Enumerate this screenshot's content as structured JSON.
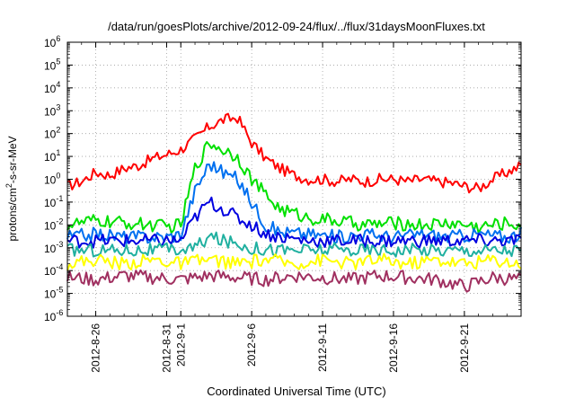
{
  "chart_data": {
    "type": "line",
    "title": "/data/run/goesPlots/archive/2012-09-24/flux/../flux/31daysMoonFluxes.txt",
    "xlabel": "Coordinated Universal Time (UTC)",
    "ylabel": {
      "prefix": "protons/cm",
      "sup": "2",
      "suffix": "-s-sr-MeV"
    },
    "y_scale": "log",
    "ylim": [
      1e-06,
      1000000.0
    ],
    "y_ticks": [
      {
        "value": -6,
        "base": "10",
        "exp": "-6"
      },
      {
        "value": -5,
        "base": "10",
        "exp": "-5"
      },
      {
        "value": -4,
        "base": "10",
        "exp": "-4"
      },
      {
        "value": -3,
        "base": "10",
        "exp": "-3"
      },
      {
        "value": -2,
        "base": "10",
        "exp": "-2"
      },
      {
        "value": -1,
        "base": "10",
        "exp": "-1"
      },
      {
        "value": 0,
        "base": "10",
        "exp": "0"
      },
      {
        "value": 1,
        "base": "10",
        "exp": "1"
      },
      {
        "value": 2,
        "base": "10",
        "exp": "2"
      },
      {
        "value": 3,
        "base": "10",
        "exp": "3"
      },
      {
        "value": 4,
        "base": "10",
        "exp": "4"
      },
      {
        "value": 5,
        "base": "10",
        "exp": "5"
      },
      {
        "value": 6,
        "base": "10",
        "exp": "6"
      }
    ],
    "xlim": [
      "2012-08-24",
      "2012-09-25"
    ],
    "x_ticks": [
      {
        "date": "2012-08-26",
        "label": "2012-8-26"
      },
      {
        "date": "2012-08-31",
        "label": "2012-8-31"
      },
      {
        "date": "2012-09-01",
        "label": "2012-9-1"
      },
      {
        "date": "2012-09-06",
        "label": "2012-9-6"
      },
      {
        "date": "2012-09-11",
        "label": "2012-9-11"
      },
      {
        "date": "2012-09-16",
        "label": "2012-9-16"
      },
      {
        "date": "2012-09-21",
        "label": "2012-9-21"
      }
    ],
    "grid": true,
    "series": [
      {
        "color": "#ff0000",
        "x": [
          "2012-08-24",
          "2012-08-25",
          "2012-08-26",
          "2012-08-27",
          "2012-08-28",
          "2012-08-29",
          "2012-08-30",
          "2012-08-31",
          "2012-09-01",
          "2012-09-02",
          "2012-09-03",
          "2012-09-04",
          "2012-09-05",
          "2012-09-06",
          "2012-09-07",
          "2012-09-08",
          "2012-09-09",
          "2012-09-10",
          "2012-09-11",
          "2012-09-12",
          "2012-09-13",
          "2012-09-14",
          "2012-09-15",
          "2012-09-16",
          "2012-09-17",
          "2012-09-18",
          "2012-09-19",
          "2012-09-20",
          "2012-09-21",
          "2012-09-22",
          "2012-09-23",
          "2012-09-24",
          "2012-09-25"
        ],
        "y": [
          0.5,
          0.8,
          2,
          1.5,
          3,
          4,
          8,
          12,
          20,
          60,
          200,
          400,
          500,
          40,
          8,
          3,
          1.5,
          1,
          1,
          0.8,
          1,
          0.8,
          1,
          1,
          0.8,
          1,
          0.8,
          0.7,
          0.5,
          0.4,
          1,
          2,
          4
        ]
      },
      {
        "color": "#00e000",
        "x": [
          "2012-08-24",
          "2012-08-26",
          "2012-08-28",
          "2012-08-30",
          "2012-08-31",
          "2012-09-01",
          "2012-09-02",
          "2012-09-03",
          "2012-09-04",
          "2012-09-05",
          "2012-09-06",
          "2012-09-07",
          "2012-09-08",
          "2012-09-10",
          "2012-09-12",
          "2012-09-14",
          "2012-09-16",
          "2012-09-18",
          "2012-09-20",
          "2012-09-21",
          "2012-09-22",
          "2012-09-23",
          "2012-09-24",
          "2012-09-25"
        ],
        "y": [
          0.01,
          0.015,
          0.012,
          0.01,
          0.008,
          0.01,
          3,
          40,
          20,
          10,
          1,
          0.2,
          0.05,
          0.02,
          0.015,
          0.01,
          0.012,
          0.01,
          0.012,
          0.01,
          0.008,
          0.01,
          0.012,
          0.01
        ]
      },
      {
        "color": "#0070f0",
        "x": [
          "2012-08-24",
          "2012-08-26",
          "2012-08-28",
          "2012-08-30",
          "2012-08-31",
          "2012-09-01",
          "2012-09-02",
          "2012-09-03",
          "2012-09-04",
          "2012-09-05",
          "2012-09-06",
          "2012-09-07",
          "2012-09-08",
          "2012-09-10",
          "2012-09-12",
          "2012-09-14",
          "2012-09-16",
          "2012-09-18",
          "2012-09-20",
          "2012-09-22",
          "2012-09-24",
          "2012-09-25"
        ],
        "y": [
          0.003,
          0.004,
          0.003,
          0.003,
          0.003,
          0.004,
          0.3,
          5,
          2,
          1,
          0.1,
          0.01,
          0.005,
          0.004,
          0.003,
          0.004,
          0.003,
          0.004,
          0.003,
          0.004,
          0.003,
          0.004
        ]
      },
      {
        "color": "#0000e0",
        "x": [
          "2012-08-24",
          "2012-08-26",
          "2012-08-28",
          "2012-08-30",
          "2012-08-31",
          "2012-09-01",
          "2012-09-02",
          "2012-09-03",
          "2012-09-04",
          "2012-09-05",
          "2012-09-06",
          "2012-09-07",
          "2012-09-08",
          "2012-09-10",
          "2012-09-12",
          "2012-09-14",
          "2012-09-16",
          "2012-09-18",
          "2012-09-20",
          "2012-09-22",
          "2012-09-24",
          "2012-09-25"
        ],
        "y": [
          0.002,
          0.002,
          0.002,
          0.002,
          0.002,
          0.002,
          0.02,
          0.1,
          0.05,
          0.02,
          0.01,
          0.004,
          0.003,
          0.002,
          0.002,
          0.002,
          0.002,
          0.002,
          0.002,
          0.002,
          0.002,
          0.002
        ]
      },
      {
        "color": "#20b0a0",
        "x": [
          "2012-08-24",
          "2012-08-26",
          "2012-08-28",
          "2012-08-30",
          "2012-09-01",
          "2012-09-02",
          "2012-09-03",
          "2012-09-04",
          "2012-09-05",
          "2012-09-06",
          "2012-09-08",
          "2012-09-10",
          "2012-09-12",
          "2012-09-14",
          "2012-09-16",
          "2012-09-18",
          "2012-09-20",
          "2012-09-22",
          "2012-09-24",
          "2012-09-25"
        ],
        "y": [
          0.0008,
          0.0008,
          0.0008,
          0.0008,
          0.0008,
          0.001,
          0.003,
          0.002,
          0.0015,
          0.001,
          0.0008,
          0.0008,
          0.0008,
          0.0008,
          0.0008,
          0.0008,
          0.0008,
          0.0008,
          0.0008,
          0.0008
        ]
      },
      {
        "color": "#ffff00",
        "x": [
          "2012-08-24",
          "2012-08-26",
          "2012-08-28",
          "2012-08-30",
          "2012-09-01",
          "2012-09-03",
          "2012-09-05",
          "2012-09-07",
          "2012-09-09",
          "2012-09-11",
          "2012-09-13",
          "2012-09-15",
          "2012-09-17",
          "2012-09-19",
          "2012-09-21",
          "2012-09-23",
          "2012-09-25"
        ],
        "y": [
          0.0002,
          0.0003,
          0.0002,
          0.0003,
          0.0002,
          0.0003,
          0.0002,
          0.0003,
          0.0002,
          0.0003,
          0.0002,
          0.0003,
          0.0002,
          0.0003,
          0.0002,
          0.0003,
          0.0002
        ]
      },
      {
        "color": "#a03060",
        "x": [
          "2012-08-24",
          "2012-08-26",
          "2012-08-28",
          "2012-08-30",
          "2012-09-01",
          "2012-09-03",
          "2012-09-05",
          "2012-09-07",
          "2012-09-09",
          "2012-09-11",
          "2012-09-13",
          "2012-09-15",
          "2012-09-17",
          "2012-09-19",
          "2012-09-21",
          "2012-09-23",
          "2012-09-25"
        ],
        "y": [
          5e-05,
          4e-05,
          6e-05,
          5e-05,
          4e-05,
          6e-05,
          5e-05,
          4e-05,
          6e-05,
          5e-05,
          4e-05,
          6e-05,
          5e-05,
          4e-05,
          2e-05,
          5e-05,
          4e-05
        ]
      }
    ]
  }
}
